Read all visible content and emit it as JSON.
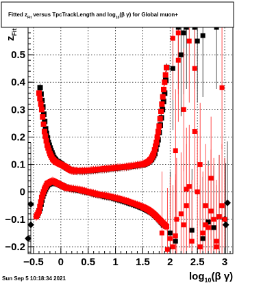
{
  "chart_data": {
    "type": "scatter",
    "title": "Fitted  z_Fit  versus TpcTrackLength and log_10(β γ) for Global muon+",
    "title_parts": {
      "pre": "Fitted  z",
      "sub1": "Fit",
      "mid": "  versus TpcTrackLength and log",
      "sub2": "10",
      "post": "(β γ) for Global muon+"
    },
    "xlabel": "log10(β γ)",
    "xlabel_parts": {
      "base": "log",
      "sub": "10",
      "post": "(β γ)"
    },
    "ylabel": "zFit",
    "ylabel_parts": {
      "base": "z",
      "sub": "Fit"
    },
    "xlim": [
      -0.6,
      3.15
    ],
    "ylim": [
      -0.225,
      0.6
    ],
    "x_ticks": [
      -0.5,
      0,
      0.5,
      1,
      1.5,
      2,
      2.5,
      3
    ],
    "x_tick_labels": [
      "−0.5",
      "0",
      "0.5",
      "1",
      "1.5",
      "2",
      "2.5",
      "3"
    ],
    "y_ticks": [
      -0.2,
      -0.1,
      0,
      0.1,
      0.2,
      0.3,
      0.4,
      0.5
    ],
    "y_tick_labels": [
      "−0.2",
      "−0.1",
      "0",
      "0.1",
      "0.2",
      "0.3",
      "0.4",
      "0.5"
    ],
    "grid": true,
    "legend": "none",
    "timestamp": "Sun Sep  5 10:18:34 2021",
    "series": [
      {
        "color": "#ff0000",
        "marker": "square",
        "bands": [
          {
            "x": [
              -0.4,
              -0.35,
              -0.3,
              -0.25,
              -0.2,
              -0.15,
              -0.1,
              -0.05,
              0,
              0.05,
              0.1,
              0.15,
              0.2,
              0.25,
              0.3,
              0.4,
              0.5,
              0.6,
              0.7,
              0.8,
              0.9,
              1,
              1.1,
              1.2,
              1.3,
              1.4,
              1.5,
              1.55,
              1.6,
              1.65,
              1.7,
              1.75,
              1.8,
              1.85,
              1.9,
              1.95
            ],
            "y": [
              0.36,
              0.3,
              0.22,
              0.17,
              0.14,
              0.12,
              0.11,
              0.105,
              0.1,
              0.095,
              0.09,
              0.082,
              0.078,
              0.077,
              0.077,
              0.077,
              0.078,
              0.08,
              0.082,
              0.084,
              0.086,
              0.088,
              0.09,
              0.092,
              0.095,
              0.098,
              0.101,
              0.104,
              0.11,
              0.12,
              0.14,
              0.18,
              0.24,
              0.32,
              0.4,
              0.48
            ]
          },
          {
            "x": [
              -0.45,
              -0.4,
              -0.35,
              -0.3,
              -0.25,
              -0.2,
              -0.15,
              -0.1,
              -0.05,
              0,
              0.05,
              0.1,
              0.2,
              0.3,
              0.4,
              0.5,
              0.6,
              0.7,
              0.8,
              0.9,
              1,
              1.1,
              1.2,
              1.3,
              1.4,
              1.5,
              1.55,
              1.6,
              1.65,
              1.7,
              1.75,
              1.8,
              1.85,
              1.9,
              1.95
            ],
            "y": [
              -0.09,
              -0.07,
              -0.02,
              0.01,
              0.03,
              0.035,
              0.04,
              0.035,
              0.03,
              0.025,
              0.02,
              0.015,
              0.012,
              0.01,
              0.005,
              0.0,
              -0.005,
              -0.01,
              -0.013,
              -0.017,
              -0.022,
              -0.027,
              -0.033,
              -0.04,
              -0.047,
              -0.055,
              -0.06,
              -0.065,
              -0.072,
              -0.08,
              -0.09,
              -0.1,
              -0.11,
              -0.12,
              -0.13
            ]
          }
        ],
        "outliers": {
          "x": [
            2.0,
            2.05,
            2.1,
            2.12,
            2.15,
            2.2,
            2.25,
            2.3,
            2.35,
            2.4,
            2.45,
            2.5,
            2.55,
            2.6,
            2.65,
            2.7,
            2.75,
            2.8,
            2.85,
            2.9,
            2.95,
            3.0,
            2.05,
            2.15,
            2.25,
            2.35,
            2.45,
            2.55,
            2.65,
            2.75,
            2.85,
            2.95,
            1.85,
            1.95,
            2.1,
            2.3
          ],
          "y": [
            -0.17,
            -0.2,
            0.15,
            -0.1,
            0.58,
            -0.08,
            -0.12,
            -0.05,
            0.02,
            -0.18,
            0.45,
            0.0,
            -0.2,
            -0.15,
            -0.05,
            -0.13,
            -0.07,
            -0.1,
            -0.18,
            -0.09,
            -0.05,
            -0.1,
            0.56,
            0.48,
            0.3,
            0.55,
            0.22,
            0.1,
            -0.12,
            0.05,
            -0.2,
            0.38,
            -0.15,
            -0.21,
            -0.16,
            0.01
          ]
        }
      },
      {
        "color": "#000000",
        "marker": "square",
        "bands": [
          {
            "x": [
              -0.38,
              -0.33,
              -0.28,
              -0.23,
              -0.18,
              -0.13,
              -0.08,
              -0.03,
              0.02,
              0.1,
              0.2,
              0.3,
              0.4,
              0.5,
              0.6,
              0.7,
              0.8,
              0.9,
              1,
              1.1,
              1.2,
              1.3,
              1.4,
              1.5,
              1.58,
              1.66,
              1.72,
              1.78,
              1.84,
              1.9,
              1.96
            ],
            "y": [
              0.38,
              0.31,
              0.23,
              0.18,
              0.15,
              0.125,
              0.112,
              0.106,
              0.1,
              0.088,
              0.078,
              0.076,
              0.076,
              0.077,
              0.079,
              0.081,
              0.083,
              0.085,
              0.087,
              0.089,
              0.091,
              0.094,
              0.097,
              0.1,
              0.105,
              0.118,
              0.14,
              0.19,
              0.27,
              0.36,
              0.5
            ]
          },
          {
            "x": [
              -0.43,
              -0.38,
              -0.33,
              -0.28,
              -0.23,
              -0.18,
              -0.13,
              -0.08,
              -0.03,
              0.02,
              0.1,
              0.2,
              0.3,
              0.4,
              0.5,
              0.6,
              0.7,
              0.8,
              0.9,
              1,
              1.1,
              1.2,
              1.3,
              1.4,
              1.5,
              1.58,
              1.66,
              1.72,
              1.78,
              1.84,
              1.9
            ],
            "y": [
              -0.085,
              -0.06,
              -0.015,
              0.012,
              0.028,
              0.033,
              0.035,
              0.032,
              0.028,
              0.022,
              0.016,
              0.011,
              0.008,
              0.004,
              -0.001,
              -0.006,
              -0.011,
              -0.015,
              -0.019,
              -0.024,
              -0.03,
              -0.036,
              -0.043,
              -0.05,
              -0.058,
              -0.066,
              -0.075,
              -0.085,
              -0.097,
              -0.11,
              -0.125
            ]
          }
        ],
        "outliers": {
          "x": [
            -0.6,
            -0.55,
            -0.55,
            2.0,
            2.05,
            2.1,
            2.15,
            2.2,
            2.3,
            2.4,
            2.5,
            2.6,
            2.7,
            2.8,
            2.9,
            3.0,
            3.02,
            3.05,
            2.25,
            2.45,
            2.6,
            2.85
          ],
          "y": [
            -0.17,
            -0.12,
            -0.045,
            -0.15,
            0.45,
            -0.18,
            0.6,
            0.5,
            0.6,
            -0.14,
            0.55,
            -0.17,
            -0.11,
            -0.13,
            -0.09,
            -0.1,
            -0.12,
            -0.04,
            0.58,
            0.6,
            0.57,
            0.6
          ]
        }
      }
    ]
  }
}
